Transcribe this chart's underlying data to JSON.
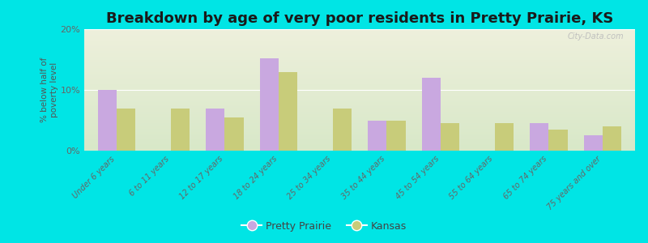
{
  "title": "Breakdown by age of very poor residents in Pretty Prairie, KS",
  "categories": [
    "Under 6 years",
    "6 to 11 years",
    "12 to 17 years",
    "18 to 24 years",
    "25 to 34 years",
    "35 to 44 years",
    "45 to 54 years",
    "55 to 64 years",
    "65 to 74 years",
    "75 years and over"
  ],
  "pretty_prairie": [
    10.0,
    0.0,
    7.0,
    15.2,
    0.0,
    5.0,
    12.0,
    0.0,
    4.5,
    2.5
  ],
  "kansas": [
    7.0,
    7.0,
    5.5,
    13.0,
    7.0,
    5.0,
    4.5,
    4.5,
    3.5,
    4.0
  ],
  "pretty_prairie_color": "#c9a8e0",
  "kansas_color": "#c8cc7a",
  "background_outer": "#00e5e5",
  "background_plot_top": "#eef0dc",
  "background_plot_bottom": "#d8e8c8",
  "ylim": [
    0,
    20
  ],
  "yticks": [
    0,
    10,
    20
  ],
  "ytick_labels": [
    "0%",
    "10%",
    "20%"
  ],
  "ylabel": "% below half of\npoverty level",
  "bar_width": 0.35,
  "title_fontsize": 13,
  "legend_label_1": "Pretty Prairie",
  "legend_label_2": "Kansas",
  "watermark": "City-Data.com"
}
